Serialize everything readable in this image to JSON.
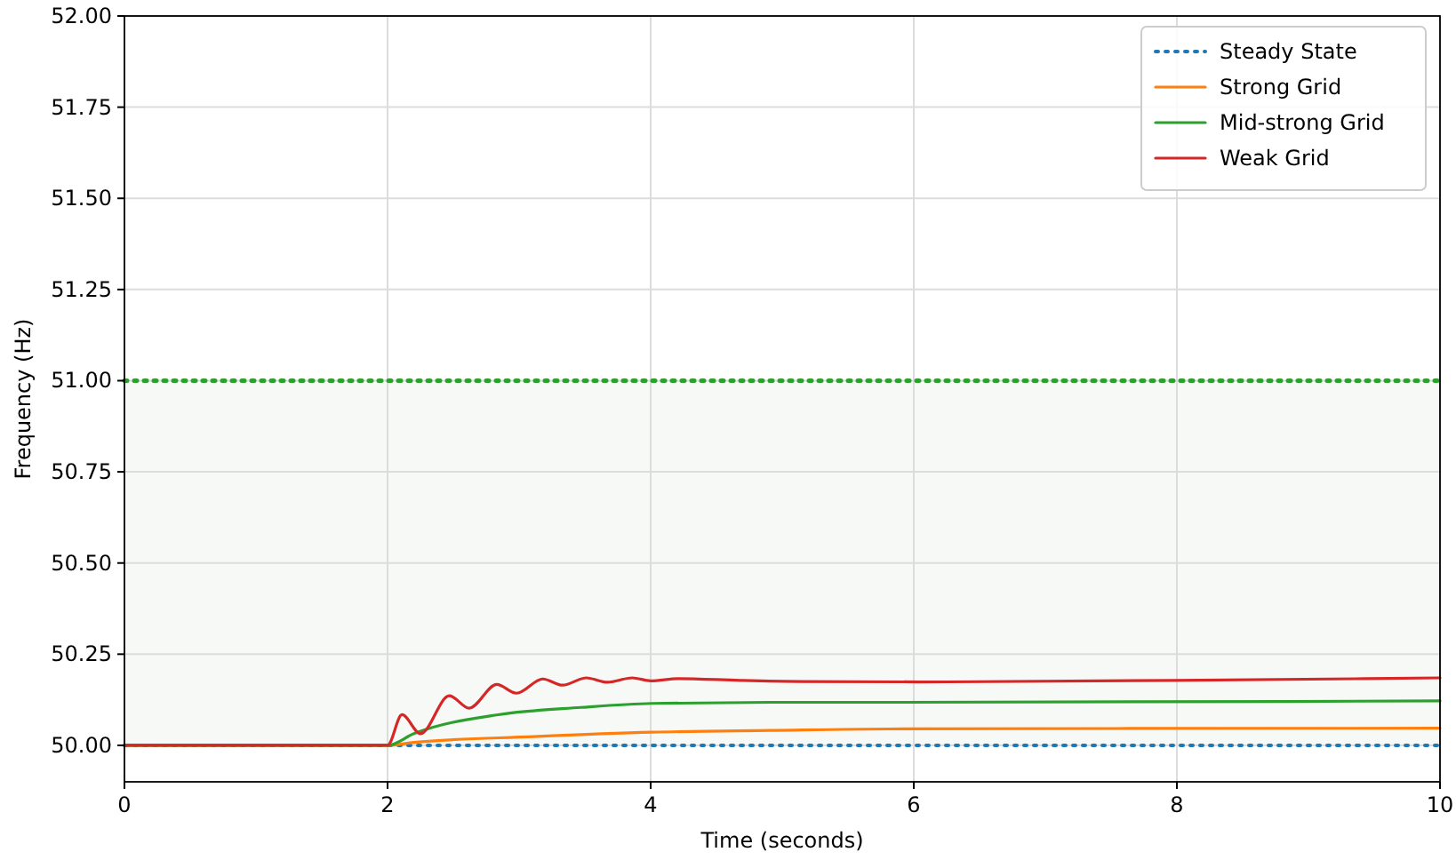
{
  "chart_data": {
    "type": "line",
    "xlabel": "Time (seconds)",
    "ylabel": "Frequency (Hz)",
    "xlim": [
      0,
      10
    ],
    "ylim": [
      49.9,
      52
    ],
    "xticks": [
      0,
      2,
      4,
      6,
      8,
      10
    ],
    "yticks": [
      {
        "value": 50,
        "label": "50.00"
      },
      {
        "value": 50.25,
        "label": "50.25"
      },
      {
        "value": 50.5,
        "label": "50.50"
      },
      {
        "value": 50.75,
        "label": "50.75"
      },
      {
        "value": 51,
        "label": "51.00"
      },
      {
        "value": 51.25,
        "label": "51.25"
      },
      {
        "value": 51.5,
        "label": "51.50"
      },
      {
        "value": 51.75,
        "label": "51.75"
      },
      {
        "value": 52,
        "label": "52.00"
      }
    ],
    "grid": true,
    "legend": "top right",
    "bands": [
      {
        "axis": "y",
        "from": 50,
        "to": 51,
        "color": "#f6f9f6"
      }
    ],
    "ref_lines": [
      {
        "axis": "y",
        "value": 51,
        "color": "#2ca02c",
        "line_style": "dotted"
      }
    ],
    "series": [
      {
        "name": "Steady State",
        "color": "#1f77b4",
        "line_style": "dotted",
        "x": [
          0,
          10
        ],
        "values": [
          50,
          50
        ]
      },
      {
        "name": "Strong Grid",
        "color": "#ff7f0e",
        "x": [
          0,
          2,
          2.2,
          3.11,
          4.01,
          4.91,
          5.81,
          10
        ],
        "values": [
          50,
          50,
          50.008,
          50.024,
          50.036,
          50.041,
          50.045,
          50.047
        ]
      },
      {
        "name": "Mid-strong Grid",
        "color": "#2ca02c",
        "x": [
          0,
          2,
          2.2,
          2.84,
          3.47,
          4.01,
          4.91,
          5.81,
          10
        ],
        "values": [
          50,
          50,
          50.032,
          50.084,
          50.104,
          50.115,
          50.118,
          50.118,
          50.122
        ]
      },
      {
        "name": "Weak Grid",
        "color": "#d62728",
        "x": [
          0,
          2,
          2.11,
          2.25,
          2.47,
          2.62,
          2.83,
          2.98,
          3.18,
          3.33,
          3.51,
          3.67,
          3.86,
          4.0,
          4.21,
          4.68,
          5.14,
          6.04,
          7.97,
          10
        ],
        "values": [
          50,
          50,
          50.084,
          50.032,
          50.136,
          50.102,
          50.167,
          50.143,
          50.182,
          50.165,
          50.185,
          50.173,
          50.185,
          50.177,
          50.183,
          50.178,
          50.175,
          50.174,
          50.178,
          50.185
        ]
      }
    ]
  }
}
